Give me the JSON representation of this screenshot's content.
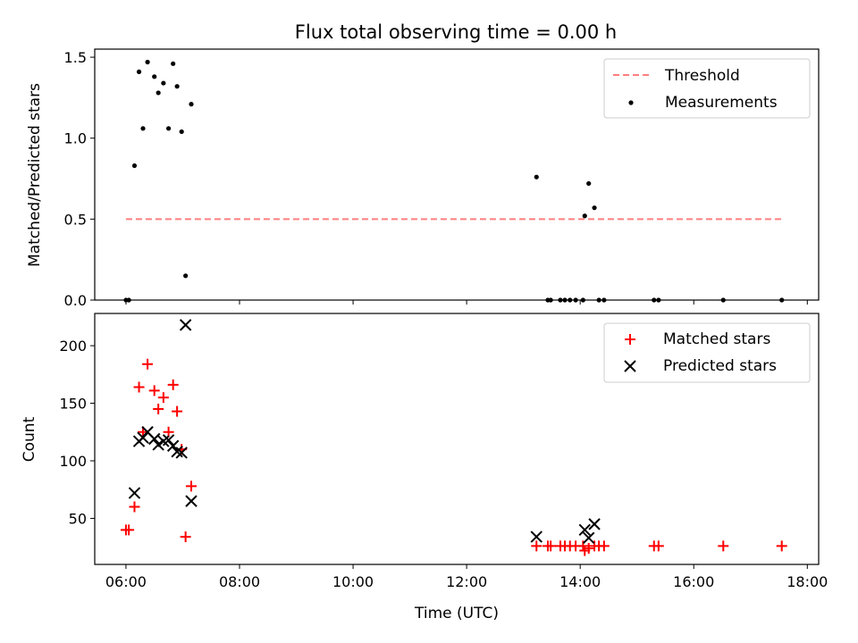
{
  "chart_data": [
    {
      "type": "scatter",
      "title": "Flux total observing time = 0.00 h",
      "xlabel": "",
      "ylabel": "Matched/Predicted stars",
      "xlim": [
        5.45,
        18.2
      ],
      "ylim": [
        0,
        1.55
      ],
      "yticks": [
        0.0,
        0.5,
        1.0,
        1.5
      ],
      "ytick_labels": [
        "0.0",
        "0.5",
        "1.0",
        "1.5"
      ],
      "xticks": [
        6,
        8,
        10,
        12,
        14,
        16,
        18
      ],
      "legend": "upper-right",
      "grid": false,
      "threshold": {
        "name": "Threshold",
        "x": [
          6.0,
          17.55
        ],
        "y": 0.5,
        "color": "#ff7f7f",
        "style": "dashed"
      },
      "series": [
        {
          "name": "Measurements",
          "marker": "dot",
          "color": "#000000",
          "points": [
            [
              6.0,
              0.0
            ],
            [
              6.05,
              0.0
            ],
            [
              6.15,
              0.83
            ],
            [
              6.23,
              1.41
            ],
            [
              6.3,
              1.06
            ],
            [
              6.38,
              1.47
            ],
            [
              6.5,
              1.38
            ],
            [
              6.57,
              1.28
            ],
            [
              6.66,
              1.34
            ],
            [
              6.75,
              1.06
            ],
            [
              6.83,
              1.46
            ],
            [
              6.9,
              1.32
            ],
            [
              6.98,
              1.04
            ],
            [
              7.05,
              0.15
            ],
            [
              7.15,
              1.21
            ],
            [
              13.23,
              0.76
            ],
            [
              13.43,
              0.0
            ],
            [
              13.48,
              0.0
            ],
            [
              13.65,
              0.0
            ],
            [
              13.73,
              0.0
            ],
            [
              13.82,
              0.0
            ],
            [
              13.92,
              0.0
            ],
            [
              14.05,
              0.0
            ],
            [
              14.08,
              0.52
            ],
            [
              14.15,
              0.72
            ],
            [
              14.25,
              0.57
            ],
            [
              14.33,
              0.0
            ],
            [
              14.42,
              0.0
            ],
            [
              15.3,
              0.0
            ],
            [
              15.38,
              0.0
            ],
            [
              16.52,
              0.0
            ],
            [
              17.55,
              0.0
            ]
          ]
        }
      ]
    },
    {
      "type": "scatter",
      "title": "",
      "xlabel": "Time (UTC)",
      "ylabel": "Count",
      "xlim": [
        5.45,
        18.2
      ],
      "ylim": [
        10,
        228
      ],
      "yticks": [
        50,
        100,
        150,
        200
      ],
      "ytick_labels": [
        "50",
        "100",
        "150",
        "200"
      ],
      "xticks": [
        6,
        8,
        10,
        12,
        14,
        16,
        18
      ],
      "xtick_labels": [
        "06:00",
        "08:00",
        "10:00",
        "12:00",
        "14:00",
        "16:00",
        "18:00"
      ],
      "legend": "upper-right",
      "grid": false,
      "series": [
        {
          "name": "Matched stars",
          "marker": "plus",
          "color": "#ff0000",
          "points": [
            [
              6.0,
              40
            ],
            [
              6.05,
              40
            ],
            [
              6.15,
              60
            ],
            [
              6.23,
              164
            ],
            [
              6.3,
              125
            ],
            [
              6.38,
              184
            ],
            [
              6.5,
              161
            ],
            [
              6.57,
              145
            ],
            [
              6.66,
              155
            ],
            [
              6.75,
              125
            ],
            [
              6.83,
              166
            ],
            [
              6.9,
              143
            ],
            [
              6.98,
              110
            ],
            [
              7.05,
              34
            ],
            [
              7.15,
              78
            ],
            [
              13.23,
              26
            ],
            [
              13.43,
              26
            ],
            [
              13.48,
              26
            ],
            [
              13.65,
              26
            ],
            [
              13.73,
              26
            ],
            [
              13.82,
              26
            ],
            [
              13.92,
              26
            ],
            [
              14.05,
              26
            ],
            [
              14.08,
              22
            ],
            [
              14.15,
              24
            ],
            [
              14.25,
              26
            ],
            [
              14.33,
              26
            ],
            [
              14.42,
              26
            ],
            [
              15.3,
              26
            ],
            [
              15.38,
              26
            ],
            [
              16.52,
              26
            ],
            [
              17.55,
              26
            ]
          ]
        },
        {
          "name": "Predicted stars",
          "marker": "x",
          "color": "#000000",
          "points": [
            [
              6.15,
              72
            ],
            [
              6.23,
              117
            ],
            [
              6.3,
              120
            ],
            [
              6.38,
              125
            ],
            [
              6.5,
              119
            ],
            [
              6.57,
              114
            ],
            [
              6.66,
              117
            ],
            [
              6.75,
              118
            ],
            [
              6.83,
              113
            ],
            [
              6.9,
              108
            ],
            [
              6.98,
              107
            ],
            [
              7.05,
              218
            ],
            [
              7.15,
              65
            ],
            [
              13.23,
              34
            ],
            [
              14.08,
              40
            ],
            [
              14.15,
              33
            ],
            [
              14.25,
              45
            ]
          ]
        }
      ]
    }
  ]
}
